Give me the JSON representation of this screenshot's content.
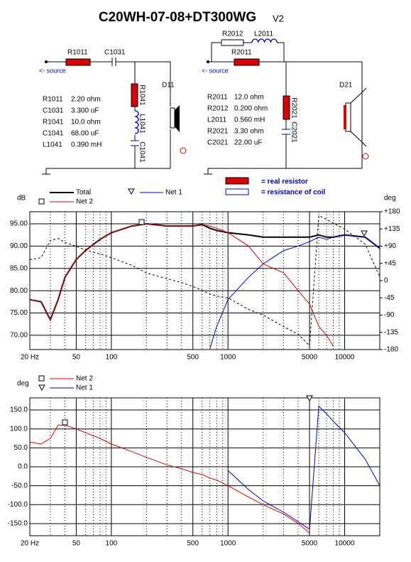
{
  "header": {
    "title": "C20WH-07-08+DT300WG",
    "version": "V2"
  },
  "schematic": {
    "left": {
      "r1": "R1011",
      "c1": "C1031",
      "source": "<- source",
      "r2": "R1041",
      "l1": "L1041",
      "c2": "C1041",
      "driver": "D11",
      "values": [
        [
          "R1011",
          "2.20 ohm"
        ],
        [
          "C1031",
          "3.300 uF"
        ],
        [
          "R1041",
          "10.0 ohm"
        ],
        [
          "C1041",
          "68.00 uF"
        ],
        [
          "L1041",
          "0.390 mH"
        ]
      ]
    },
    "right": {
      "r2": "R2012",
      "l1": "L2011",
      "r1": "R2011",
      "source": "<- source",
      "r3": "R2021",
      "c1": "C2021",
      "driver": "D21",
      "values": [
        [
          "R2011",
          "12.0 ohm"
        ],
        [
          "R2012",
          "0.200 ohm"
        ],
        [
          "L2011",
          "0.560 mH"
        ],
        [
          "R2021",
          "3.30 ohm"
        ],
        [
          "C2021",
          "22.00 uF"
        ]
      ]
    },
    "legend": [
      "= real resistor",
      "= resistance of coil"
    ]
  },
  "chart_data": [
    {
      "type": "line",
      "ylabel": "dB",
      "y2label": "deg",
      "log_x": true,
      "grid": true,
      "x": [
        20,
        25,
        30,
        35,
        40,
        50,
        60,
        80,
        100,
        150,
        200,
        300,
        400,
        500,
        600,
        700,
        800,
        1000,
        1500,
        2000,
        3000,
        4000,
        5000,
        6000,
        7000,
        8000,
        10000,
        15000,
        20000
      ],
      "xlim": [
        20,
        20000
      ],
      "xticks": [
        {
          "value": 20,
          "label": "20 Hz"
        },
        50,
        100,
        500,
        1000,
        5000,
        10000
      ],
      "xminor": [
        30,
        40,
        60,
        70,
        80,
        90,
        200,
        300,
        400,
        600,
        700,
        800,
        900,
        2000,
        3000,
        4000,
        6000,
        7000,
        8000,
        9000,
        20000
      ],
      "ylim": [
        66.8,
        97.7
      ],
      "yticks": [
        {
          "value": 70,
          "label": "70.00"
        },
        {
          "value": 75,
          "label": "75.00"
        },
        {
          "value": 80,
          "label": "80.00"
        },
        {
          "value": 85,
          "label": "85.00"
        },
        {
          "value": 90,
          "label": "90.00"
        },
        {
          "value": 95,
          "label": "95.00"
        }
      ],
      "y2lim": [
        -180,
        180
      ],
      "y2ticks": [
        -180,
        -135,
        -90,
        -45,
        0,
        {
          "value": 45,
          "label": "+45"
        },
        {
          "value": 90,
          "label": "+90"
        },
        {
          "value": 135,
          "label": "+135"
        },
        {
          "value": 180,
          "label": "+180"
        }
      ],
      "series": [
        {
          "name": "Total",
          "color": "#000000",
          "width": 2,
          "values": [
            78,
            77.5,
            73.5,
            78,
            83,
            87,
            89,
            91.5,
            93,
            94.5,
            95,
            94.5,
            94.5,
            94.5,
            94.8,
            94,
            93.5,
            93,
            92.5,
            92,
            92,
            92,
            92,
            92.5,
            92,
            92,
            92.5,
            92,
            89.5
          ]
        },
        {
          "name": "Net 1",
          "color": "#0000cc",
          "width": 1,
          "values": [
            null,
            null,
            null,
            null,
            null,
            null,
            null,
            null,
            null,
            null,
            null,
            null,
            null,
            null,
            null,
            67,
            72,
            78,
            83,
            86,
            89,
            90,
            91,
            92,
            91.5,
            92,
            92.5,
            92,
            89.5
          ]
        },
        {
          "name": "Net 2",
          "color": "#dd0000",
          "width": 1,
          "values": [
            78,
            77.5,
            73.5,
            78,
            83,
            87,
            89,
            91.5,
            93,
            94.5,
            95,
            94.5,
            94.5,
            94.5,
            94.8,
            94.5,
            94,
            93,
            90,
            86,
            84,
            80,
            77,
            72,
            70,
            67.5,
            null,
            null,
            null
          ]
        },
        {
          "color": "#000000",
          "width": 1,
          "dashed": true,
          "axis": "y2",
          "values": [
            55,
            60,
            105,
            110,
            100,
            90,
            80,
            70,
            60,
            40,
            20,
            5,
            -5,
            -15,
            -25,
            -35,
            -40,
            -45,
            -75,
            -90,
            -120,
            -140,
            -170,
            170,
            160,
            150,
            135,
            95,
            10
          ]
        }
      ]
    },
    {
      "type": "line",
      "ylabel": "deg",
      "log_x": true,
      "grid": true,
      "x": [
        20,
        25,
        30,
        35,
        40,
        50,
        60,
        80,
        100,
        150,
        200,
        300,
        400,
        500,
        600,
        700,
        800,
        1000,
        1500,
        2000,
        3000,
        4000,
        5000,
        6000,
        7000,
        8000,
        10000,
        15000,
        20000
      ],
      "xlim": [
        20,
        20000
      ],
      "xticks": [
        {
          "value": 20,
          "label": "20 Hz"
        },
        50,
        100,
        500,
        1000,
        5000,
        10000
      ],
      "xminor": [
        30,
        40,
        60,
        70,
        80,
        90,
        200,
        300,
        400,
        600,
        700,
        800,
        900,
        2000,
        3000,
        4000,
        6000,
        7000,
        8000,
        9000,
        20000
      ],
      "ylim": [
        -182,
        182
      ],
      "yticks": [
        {
          "value": -150,
          "label": "-150.0"
        },
        {
          "value": -100,
          "label": "-100.0"
        },
        {
          "value": -50,
          "label": "-50.0"
        },
        {
          "value": 0,
          "label": "0.0"
        },
        {
          "value": 50,
          "label": "50.0"
        },
        {
          "value": 100,
          "label": "100.0"
        },
        {
          "value": 150,
          "label": "150.0"
        }
      ],
      "series": [
        {
          "name": "Net 2",
          "color": "#dd0000",
          "width": 1,
          "values": [
            65,
            60,
            75,
            110,
            110,
            100,
            90,
            75,
            60,
            40,
            25,
            5,
            -5,
            -15,
            -20,
            -30,
            -35,
            -50,
            -80,
            -100,
            -125,
            -150,
            -175,
            null,
            null,
            null,
            null,
            null,
            null
          ]
        },
        {
          "name": "Net 1",
          "color": "#0000cc",
          "width": 1,
          "values": [
            null,
            null,
            null,
            null,
            null,
            null,
            null,
            null,
            null,
            null,
            null,
            null,
            null,
            null,
            null,
            null,
            null,
            -10,
            -60,
            -90,
            -120,
            -145,
            -165,
            160,
            140,
            120,
            90,
            20,
            -50
          ]
        }
      ]
    }
  ]
}
